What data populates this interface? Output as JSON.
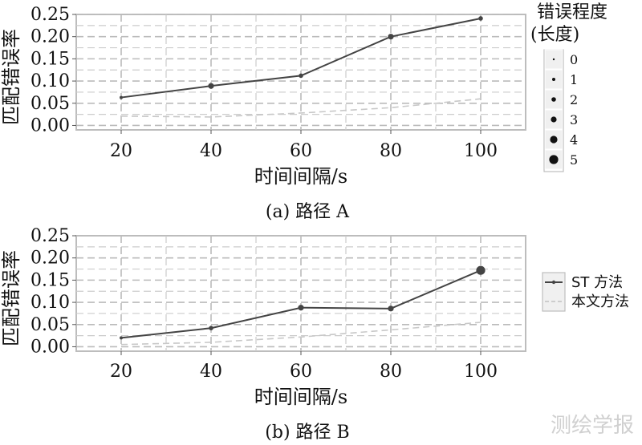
{
  "chart_data": [
    {
      "type": "line",
      "caption": "(a) 路径 A",
      "xlabel": "时间间隔/s",
      "ylabel": "匹配错误率",
      "categories": [
        20,
        40,
        60,
        80,
        100
      ],
      "xlim": [
        10,
        110
      ],
      "ylim": [
        -0.01,
        0.25
      ],
      "yticks": [
        "0.00",
        "0.05",
        "0.10",
        "0.15",
        "0.20",
        "0.25"
      ],
      "grid": true,
      "series": [
        {
          "name": "ST 方法",
          "values": [
            0.063,
            0.089,
            0.112,
            0.2,
            0.241
          ],
          "sizes": [
            1,
            3,
            2,
            3,
            2
          ],
          "style": "solid",
          "color": "#444444"
        },
        {
          "name": "本文方法",
          "values": [
            0.021,
            0.019,
            0.028,
            0.04,
            0.06
          ],
          "style": "dashed",
          "color": "#c8c8c8"
        }
      ],
      "size_legend": {
        "title": [
          "错误程度",
          "(长度)"
        ],
        "levels": [
          "0",
          "1",
          "2",
          "3",
          "4",
          "5"
        ]
      }
    },
    {
      "type": "line",
      "caption": "(b) 路径 B",
      "xlabel": "时间间隔/s",
      "ylabel": "匹配错误率",
      "categories": [
        20,
        40,
        60,
        80,
        100
      ],
      "xlim": [
        10,
        110
      ],
      "ylim": [
        -0.01,
        0.25
      ],
      "yticks": [
        "0.00",
        "0.05",
        "0.10",
        "0.15",
        "0.20",
        "0.25"
      ],
      "grid": true,
      "series": [
        {
          "name": "ST 方法",
          "values": [
            0.02,
            0.042,
            0.088,
            0.086,
            0.172
          ],
          "sizes": [
            1,
            2,
            3,
            3,
            5
          ],
          "style": "solid",
          "color": "#444444"
        },
        {
          "name": "本文方法",
          "values": [
            0.005,
            0.01,
            0.022,
            0.038,
            0.055
          ],
          "style": "dashed",
          "color": "#c8c8c8"
        }
      ],
      "legend": [
        "ST 方法",
        "本文方法"
      ]
    }
  ],
  "watermark": "测绘学报"
}
